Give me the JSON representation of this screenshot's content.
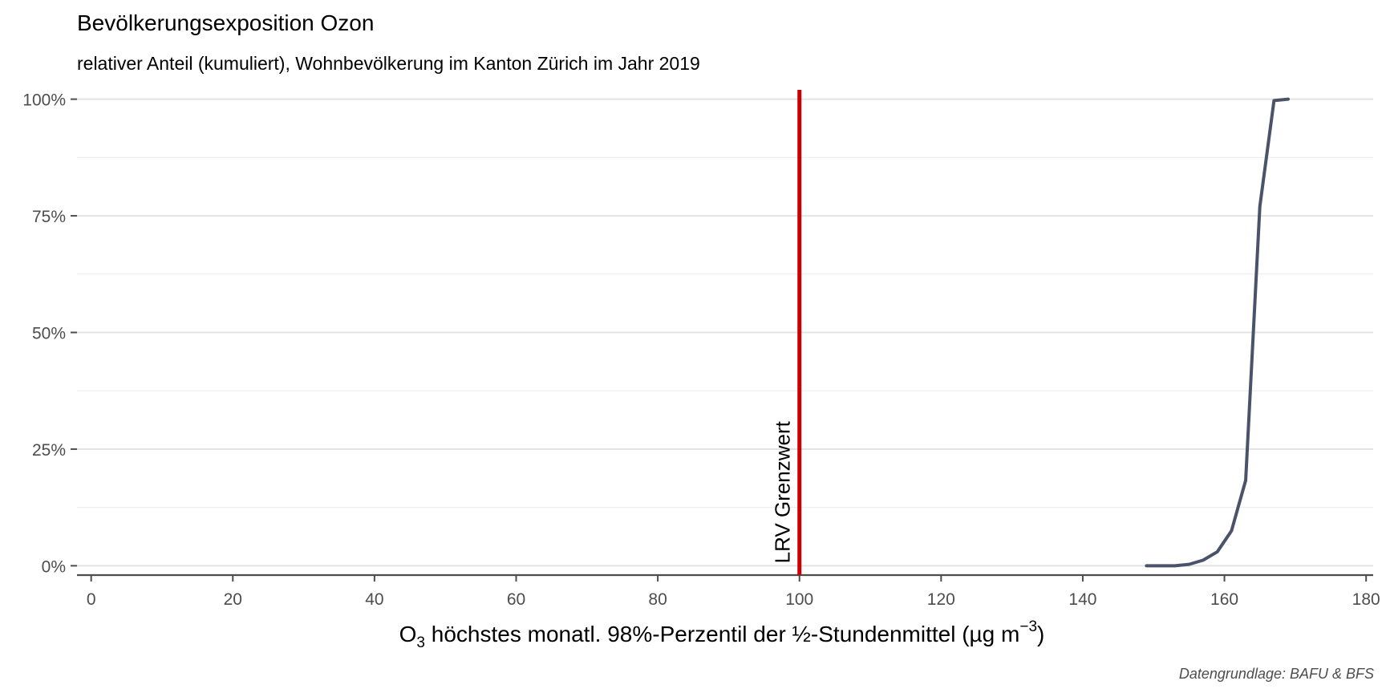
{
  "chart_data": {
    "type": "line",
    "title": "Bevölkerungsexposition Ozon",
    "subtitle": "relativer Anteil (kumuliert), Wohnbevölkerung im Kanton Zürich im Jahr 2019",
    "xlabel": {
      "prefix": "O",
      "subscript": "3",
      "main": " höchstes monatl. 98%-Perzentil der ½-Stundenmittel (µg m",
      "superscript": "−3",
      "suffix": ")"
    },
    "ylabel": "",
    "caption": "Datengrundlage: BAFU & BFS",
    "xlim": [
      -2,
      181
    ],
    "ylim": [
      -0.02,
      1.02
    ],
    "x_ticks": [
      0,
      20,
      40,
      60,
      80,
      100,
      120,
      140,
      160,
      180
    ],
    "x_tick_labels": [
      "0",
      "20",
      "40",
      "60",
      "80",
      "100",
      "120",
      "140",
      "160",
      "180"
    ],
    "y_ticks": [
      0,
      0.25,
      0.5,
      0.75,
      1.0
    ],
    "y_tick_labels": [
      "0%",
      "25%",
      "50%",
      "75%",
      "100%"
    ],
    "grid": true,
    "series": [
      {
        "color": "#4a5369",
        "x": [
          149,
          151,
          153,
          155,
          157,
          159,
          161,
          163,
          165,
          167,
          169
        ],
        "y": [
          0.0,
          0.0,
          0.0,
          0.003,
          0.012,
          0.03,
          0.075,
          0.183,
          0.77,
          0.997,
          1.0
        ]
      }
    ],
    "reference_line": {
      "x": 100,
      "label": "LRV Grenzwert",
      "color": "#cc0000"
    }
  }
}
